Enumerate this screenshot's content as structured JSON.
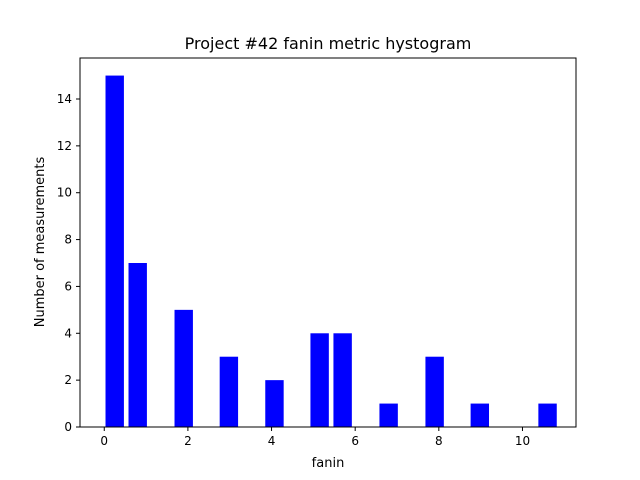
{
  "chart_data": {
    "type": "bar",
    "title": "Project #42 fanin metric hystogram",
    "xlabel": "fanin",
    "ylabel": "Number of measurements",
    "x": [
      0.25,
      0.8,
      1.9,
      2.98,
      4.07,
      5.15,
      5.7,
      6.8,
      7.9,
      8.98,
      10.6
    ],
    "values": [
      15,
      7,
      5,
      3,
      2,
      4,
      4,
      1,
      3,
      1,
      1
    ],
    "bar_width": 0.44,
    "bar_color": "#0000ff",
    "xlim": [
      -0.58,
      11.28
    ],
    "ylim": [
      0,
      15.75
    ],
    "xticks": [
      0,
      2,
      4,
      6,
      8,
      10
    ],
    "yticks": [
      0,
      2,
      4,
      6,
      8,
      10,
      12,
      14
    ],
    "grid": false,
    "legend": "none"
  }
}
